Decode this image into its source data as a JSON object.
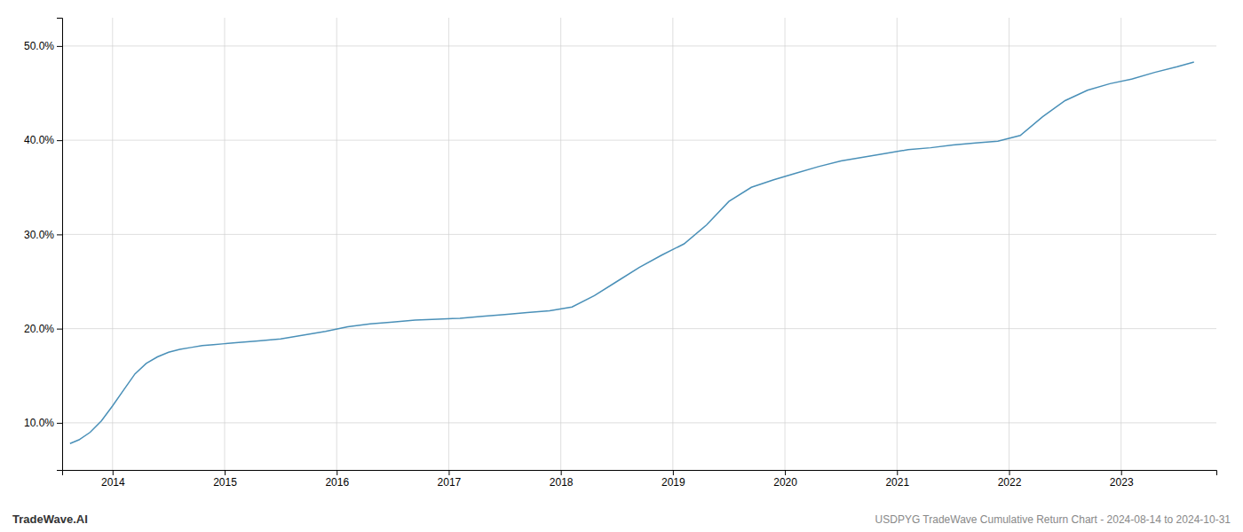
{
  "chart_data": {
    "type": "line",
    "title": "USDPYG TradeWave Cumulative Return Chart - 2024-08-14 to 2024-10-31",
    "annotations": [
      "TradeWave.AI"
    ],
    "color": "#4a90b8",
    "grid": true,
    "x": [
      2013.62,
      2013.7,
      2013.8,
      2013.9,
      2014.0,
      2014.1,
      2014.2,
      2014.3,
      2014.4,
      2014.5,
      2014.6,
      2014.7,
      2014.8,
      2014.9,
      2015.0,
      2015.1,
      2015.2,
      2015.3,
      2015.5,
      2015.7,
      2015.9,
      2016.1,
      2016.3,
      2016.5,
      2016.7,
      2016.9,
      2017.1,
      2017.3,
      2017.5,
      2017.7,
      2017.9,
      2018.1,
      2018.3,
      2018.5,
      2018.7,
      2018.9,
      2019.1,
      2019.3,
      2019.5,
      2019.7,
      2019.9,
      2020.1,
      2020.3,
      2020.5,
      2020.7,
      2020.9,
      2021.1,
      2021.3,
      2021.5,
      2021.7,
      2021.9,
      2022.1,
      2022.3,
      2022.5,
      2022.7,
      2022.9,
      2023.1,
      2023.3,
      2023.5,
      2023.65
    ],
    "values": [
      7.8,
      8.2,
      9.0,
      10.2,
      11.8,
      13.5,
      15.2,
      16.3,
      17.0,
      17.5,
      17.8,
      18.0,
      18.2,
      18.3,
      18.4,
      18.5,
      18.6,
      18.7,
      18.9,
      19.3,
      19.7,
      20.2,
      20.5,
      20.7,
      20.9,
      21.0,
      21.1,
      21.3,
      21.5,
      21.7,
      21.9,
      22.3,
      23.5,
      25.0,
      26.5,
      27.8,
      29.0,
      31.0,
      33.5,
      35.0,
      35.8,
      36.5,
      37.2,
      37.8,
      38.2,
      38.6,
      39.0,
      39.2,
      39.5,
      39.7,
      39.9,
      40.5,
      42.5,
      44.2,
      45.3,
      46.0,
      46.5,
      47.2,
      47.8,
      48.3
    ],
    "xlim": [
      2013.55,
      2023.85
    ],
    "xticks": [
      2014,
      2015,
      2016,
      2017,
      2018,
      2019,
      2020,
      2021,
      2022,
      2023
    ],
    "ylim": [
      5.0,
      53.0
    ],
    "yticks": [
      {
        "value": 10.0,
        "label": "10.0%"
      },
      {
        "value": 20.0,
        "label": "20.0%"
      },
      {
        "value": 30.0,
        "label": "30.0%"
      },
      {
        "value": 40.0,
        "label": "40.0%"
      },
      {
        "value": 50.0,
        "label": "50.0%"
      }
    ]
  }
}
